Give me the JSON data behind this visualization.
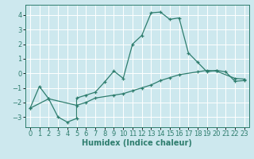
{
  "xlabel": "Humidex (Indice chaleur)",
  "xlim": [
    -0.5,
    23.5
  ],
  "ylim": [
    -3.7,
    4.7
  ],
  "bg_color": "#cde8ee",
  "grid_color": "#ffffff",
  "line_color": "#2e7d6e",
  "curve1_x": [
    0,
    1,
    2,
    3,
    4,
    5,
    5,
    6,
    7,
    8,
    9,
    10,
    11,
    12,
    13,
    14,
    15,
    16,
    17,
    18,
    19,
    20,
    21,
    22,
    23
  ],
  "curve1_y": [
    -2.4,
    -0.9,
    -1.75,
    -3.0,
    -3.35,
    -3.1,
    -1.7,
    -1.5,
    -1.3,
    -0.6,
    0.15,
    -0.35,
    2.0,
    2.6,
    4.15,
    4.2,
    3.7,
    3.8,
    1.4,
    0.75,
    0.1,
    0.2,
    0.1,
    -0.55,
    -0.5
  ],
  "curve2_x": [
    0,
    2,
    5,
    6,
    7,
    9,
    10,
    11,
    12,
    13,
    14,
    15,
    16,
    18,
    19,
    20,
    22,
    23
  ],
  "curve2_y": [
    -2.4,
    -1.75,
    -2.2,
    -2.0,
    -1.7,
    -1.5,
    -1.4,
    -1.2,
    -1.0,
    -0.8,
    -0.5,
    -0.3,
    -0.1,
    0.1,
    0.2,
    0.15,
    -0.35,
    -0.4
  ],
  "xticks": [
    0,
    1,
    2,
    3,
    4,
    5,
    6,
    7,
    8,
    9,
    10,
    11,
    12,
    13,
    14,
    15,
    16,
    17,
    18,
    19,
    20,
    21,
    22,
    23
  ],
  "yticks": [
    -3,
    -2,
    -1,
    0,
    1,
    2,
    3,
    4
  ],
  "tick_fontsize": 6,
  "xlabel_fontsize": 7
}
